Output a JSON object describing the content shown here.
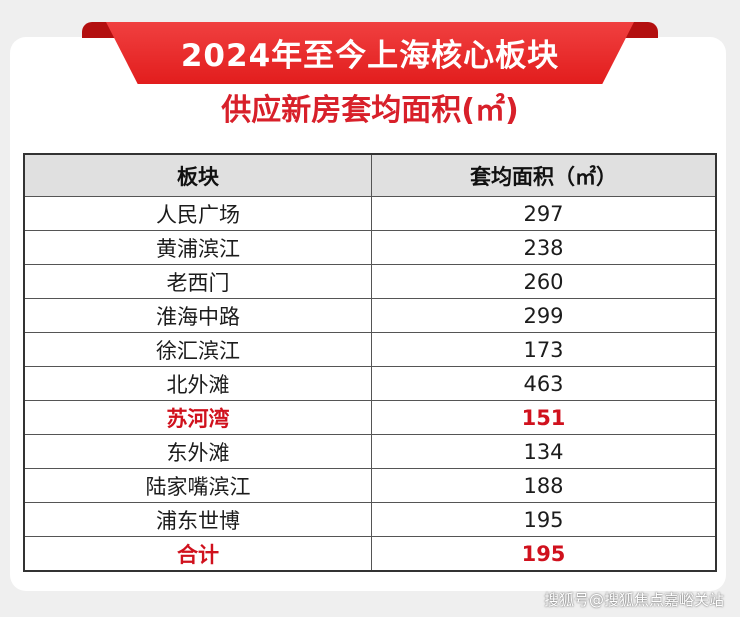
{
  "banner_title": "2024年至今上海核心板块",
  "subtitle": "供应新房套均面积(㎡)",
  "table": {
    "headers": [
      "板块",
      "套均面积（㎡）"
    ],
    "rows": [
      {
        "name": "人民广场",
        "value": "297",
        "highlight": false
      },
      {
        "name": "黄浦滨江",
        "value": "238",
        "highlight": false
      },
      {
        "name": "老西门",
        "value": "260",
        "highlight": false
      },
      {
        "name": "淮海中路",
        "value": "299",
        "highlight": false
      },
      {
        "name": "徐汇滨江",
        "value": "173",
        "highlight": false
      },
      {
        "name": "北外滩",
        "value": "463",
        "highlight": false
      },
      {
        "name": "苏河湾",
        "value": "151",
        "highlight": true
      },
      {
        "name": "东外滩",
        "value": "134",
        "highlight": false
      },
      {
        "name": "陆家嘴滨江",
        "value": "188",
        "highlight": false
      },
      {
        "name": "浦东世博",
        "value": "195",
        "highlight": false
      },
      {
        "name": "合计",
        "value": "195",
        "highlight": true
      }
    ]
  },
  "watermark": "搜狐号@搜狐焦点嘉峪关站",
  "colors": {
    "banner_red": "#e21d1d",
    "highlight_red": "#d0111d",
    "header_gray": "#e0e0e0"
  }
}
